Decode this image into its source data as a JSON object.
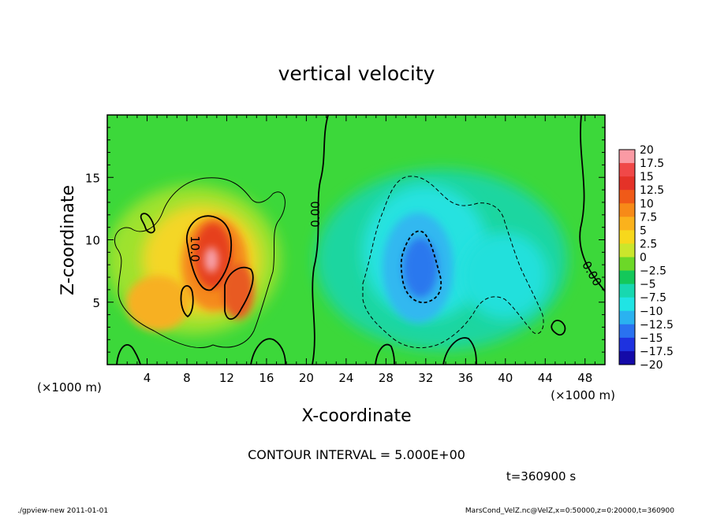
{
  "chart_data": {
    "type": "heatmap",
    "title": "vertical velocity",
    "xlabel": "X-coordinate",
    "ylabel": "Z-coordinate",
    "x_unit": "(×1000 m)",
    "y_unit": "(×1000 m)",
    "xlim": [
      0,
      50
    ],
    "ylim": [
      0,
      20
    ],
    "x_ticks": [
      "4",
      "8",
      "12",
      "16",
      "20",
      "24",
      "28",
      "32",
      "36",
      "40",
      "44",
      "48"
    ],
    "x_tick_values": [
      4,
      8,
      12,
      16,
      20,
      24,
      28,
      32,
      36,
      40,
      44,
      48
    ],
    "y_ticks": [
      "5",
      "10",
      "15"
    ],
    "y_tick_values": [
      5,
      10,
      15
    ],
    "colorbar": {
      "labels": [
        "20",
        "17.5",
        "15",
        "12.5",
        "10",
        "7.5",
        "5",
        "2.5",
        "0",
        "−2.5",
        "−5",
        "−7.5",
        "−10",
        "−12.5",
        "−15",
        "−17.5",
        "−20"
      ],
      "colors": [
        "#fa9aa4",
        "#f04848",
        "#e43228",
        "#f05a18",
        "#f78a18",
        "#fbb21c",
        "#f7d81c",
        "#cbe62c",
        "#6cd828",
        "#14c85a",
        "#18d8b0",
        "#20e4e4",
        "#2ab2f0",
        "#2a72f0",
        "#1e32e0",
        "#140aa8",
        "#6e1ebe"
      ]
    },
    "contour_labels": [
      "10.0",
      "0.00",
      "0.00"
    ],
    "contour_interval_text": "CONTOUR INTERVAL = 5.000E+00",
    "time_text": "t=360900 s",
    "features": [
      {
        "kind": "updraft-max",
        "x": 10.5,
        "z": 8.7,
        "value": 20
      },
      {
        "kind": "updraft",
        "x": 13.5,
        "z": 6.5,
        "value": 12.5
      },
      {
        "kind": "updraft",
        "x": 7.0,
        "z": 4.5,
        "value": 10
      },
      {
        "kind": "downdraft-min",
        "x": 31.5,
        "z": 7.5,
        "value": -12.5
      }
    ]
  },
  "footer": {
    "left": "./gpview-new  2011-01-01",
    "right": "MarsCond_VelZ.nc@VelZ,x=0:50000,z=0:20000,t=360900"
  }
}
